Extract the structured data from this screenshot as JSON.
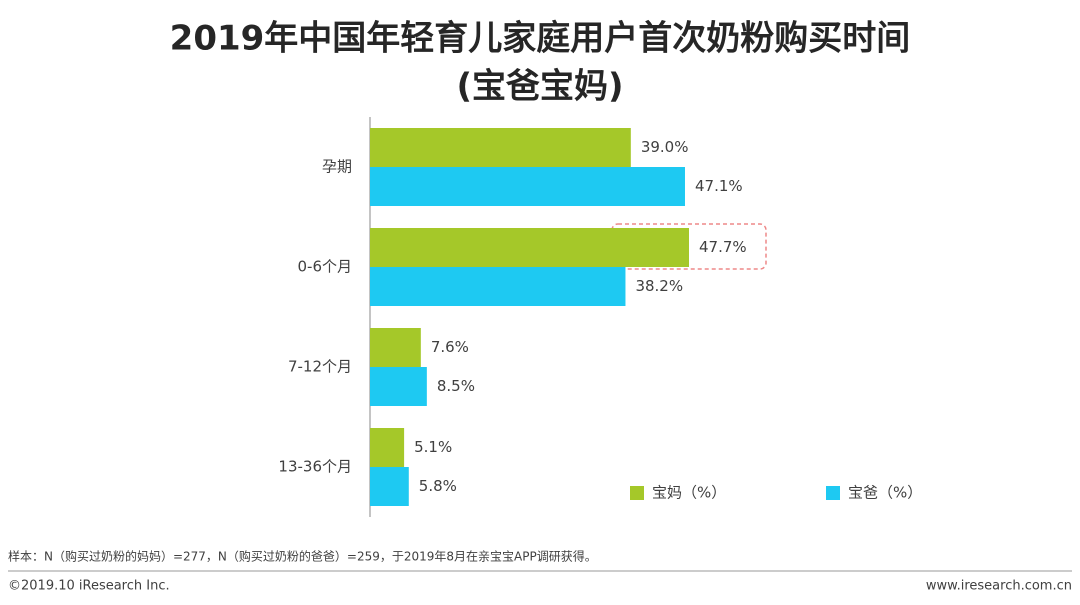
{
  "chart_data": {
    "type": "bar",
    "orientation": "horizontal",
    "title": "2019年中国年轻育儿家庭用户首次奶粉购买时间",
    "subtitle": "(宝爸宝妈)",
    "categories": [
      "孕期",
      "0-6个月",
      "7-12个月",
      "13-36个月"
    ],
    "series": [
      {
        "name": "宝妈（%）",
        "color": "#a5c829",
        "values": [
          39.0,
          47.7,
          7.6,
          5.1
        ],
        "value_labels": [
          "39.0%",
          "47.7%",
          "7.6%",
          "5.1%"
        ]
      },
      {
        "name": "宝爸（%）",
        "color": "#1ec9f2",
        "values": [
          47.1,
          38.2,
          8.5,
          5.8
        ],
        "value_labels": [
          "47.1%",
          "38.2%",
          "8.5%",
          "5.8%"
        ]
      }
    ],
    "note": "样本：N（购买过奶粉的妈妈）=277，N（购买过奶粉的爸爸）=259，于2019年8月在亲宝宝APP调研获得。",
    "copyright": "©2019.10 iResearch Inc.",
    "website": "www.iresearch.com.cn"
  }
}
